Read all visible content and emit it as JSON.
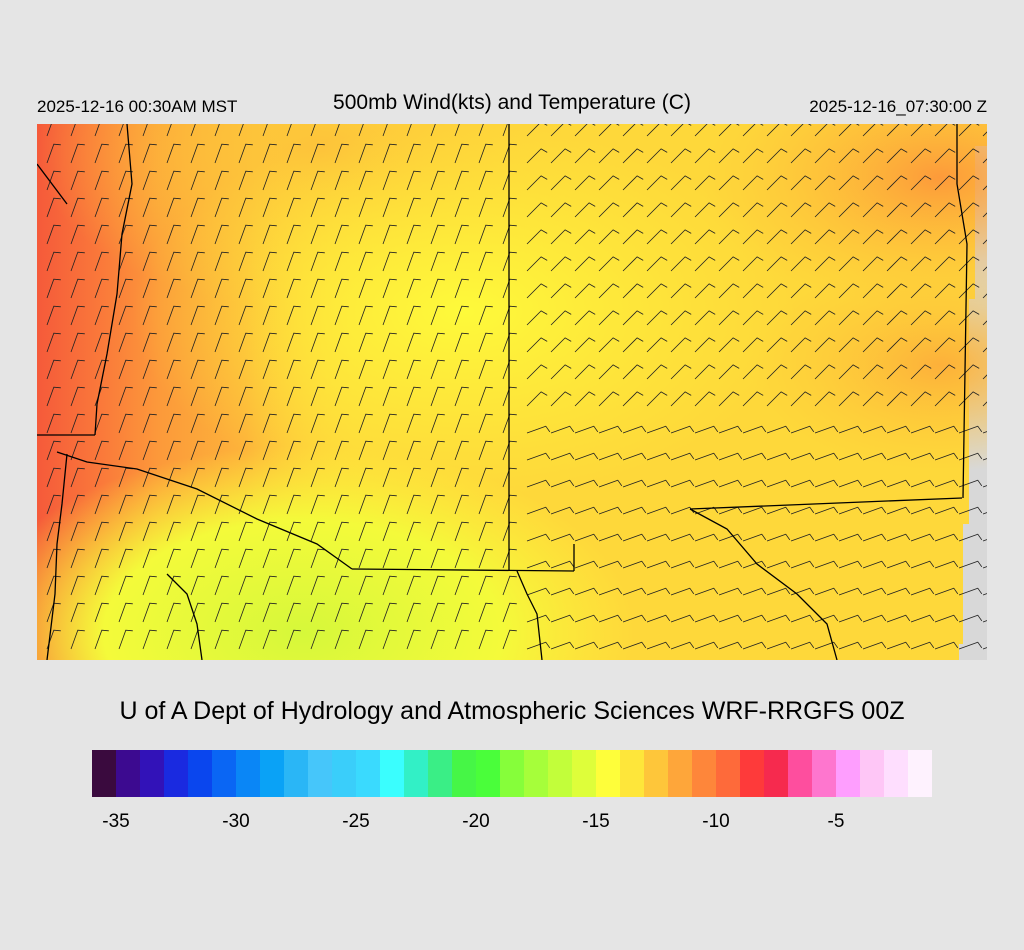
{
  "header": {
    "valid_time": "2025-12-16 00:30AM MST",
    "title": "500mb Wind(kts) and Temperature (C)",
    "init_time": "2025-12-16_07:30:00 Z"
  },
  "credit": "U of A Dept of Hydrology and Atmospheric Sciences WRF-RRGFS 00Z",
  "colorbar": {
    "colors": [
      "#3a0a3e",
      "#3c0a90",
      "#3212b8",
      "#1a2ae0",
      "#0a46ee",
      "#0a66f4",
      "#0a86f6",
      "#0aa2f6",
      "#2ab6f6",
      "#46c6fa",
      "#3acefa",
      "#3adafe",
      "#3afefe",
      "#32f0c6",
      "#3aee86",
      "#46f646",
      "#4afe3a",
      "#86fe3a",
      "#a6fe3a",
      "#c2fe3a",
      "#defe3a",
      "#fefe3a",
      "#fee63a",
      "#fec63a",
      "#fea63a",
      "#fe863a",
      "#fe6a3a",
      "#fe3a3a",
      "#f62a4e",
      "#fe4e9e",
      "#fe76ce",
      "#fe9efe",
      "#fec6f6",
      "#fedefe",
      "#fef2fe"
    ],
    "tick_labels": [
      "-35",
      "-30",
      "-25",
      "-20",
      "-15",
      "-10",
      "-5"
    ]
  }
}
